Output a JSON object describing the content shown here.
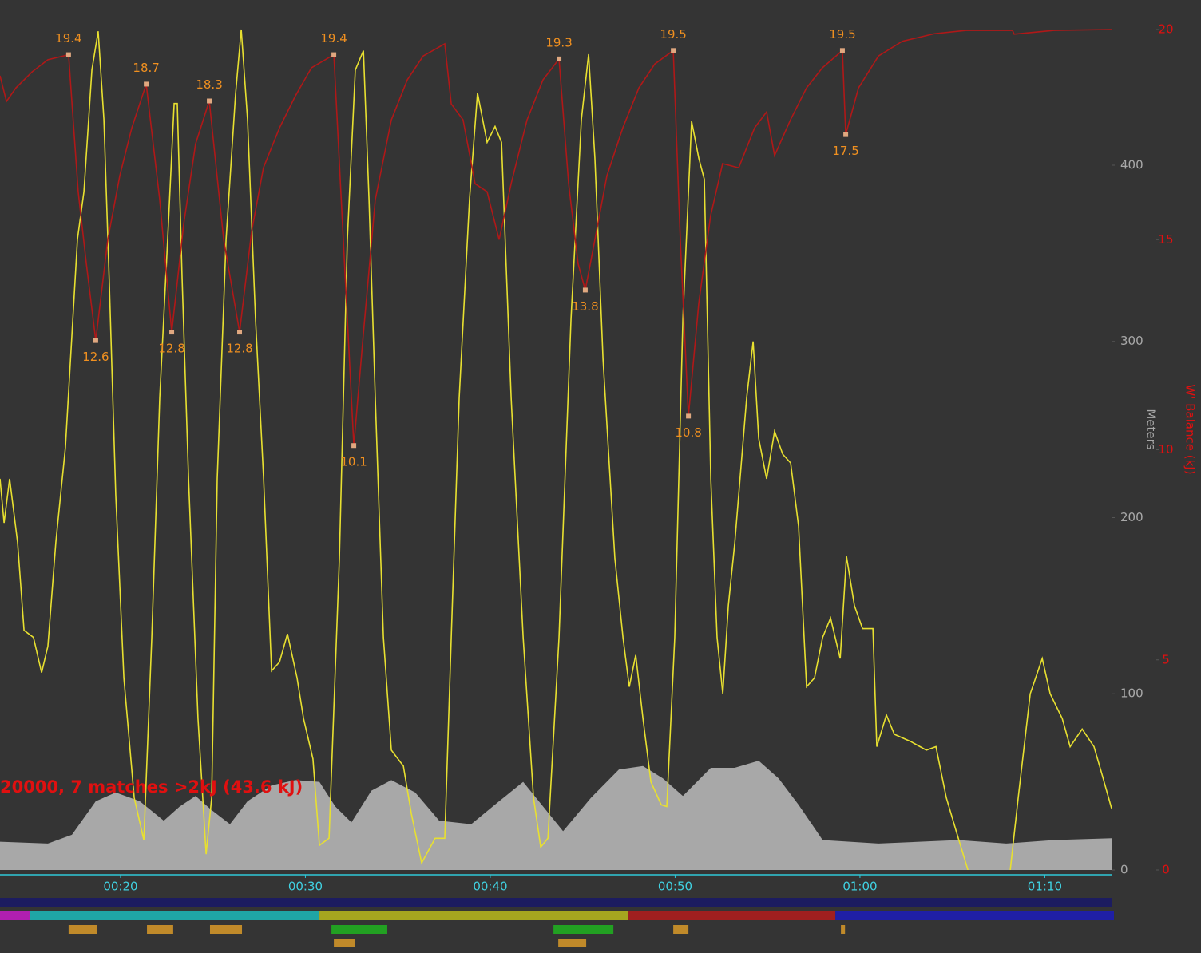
{
  "chart_data": {
    "type": "line",
    "title": "20000, 7 matches >2kJ (43.6 kJ)",
    "ylabel": "Meters",
    "y2label": "W' Balance (kJ)",
    "xlim": [
      13.48,
      73.61
    ],
    "xticks": [
      {
        "value": 20,
        "label": "00:20"
      },
      {
        "value": 30,
        "label": "00:30"
      },
      {
        "value": 40,
        "label": "00:40"
      },
      {
        "value": 50,
        "label": "00:50"
      },
      {
        "value": 60,
        "label": "01:00"
      },
      {
        "value": 70,
        "label": "01:10"
      }
    ],
    "ylim": [
      0,
      477
    ],
    "yticks": [
      0,
      100,
      200,
      300,
      400
    ],
    "y2lim": [
      0,
      20
    ],
    "y2ticks": [
      0,
      5,
      10,
      15,
      20
    ],
    "series": [
      {
        "type": "area",
        "color": "#a8a8a8",
        "x": [
          13.48,
          16.07,
          17.37,
          18.66,
          19.74,
          21.04,
          22.34,
          23.2,
          24.06,
          24.93,
          25.92,
          26.87,
          28.17,
          29.46,
          30.76,
          31.62,
          32.49,
          33.57,
          34.65,
          35.94,
          37.24,
          38.97,
          40.48,
          41.78,
          42.86,
          43.94,
          45.45,
          46.96,
          48.26,
          49.34,
          50.42,
          51.93,
          53.22,
          54.52,
          55.6,
          56.68,
          57.98,
          61.0,
          65.32,
          67.91,
          70.5,
          73.61
        ],
        "values": [
          16,
          15,
          20,
          39,
          44,
          39,
          28,
          36,
          42,
          34,
          26,
          39,
          48,
          51,
          50,
          36,
          27,
          45,
          51,
          44,
          28,
          26,
          39,
          50,
          36,
          22,
          41,
          57,
          59,
          52,
          42,
          58,
          58,
          62,
          52,
          37,
          17,
          15,
          17,
          15,
          17,
          18
        ]
      },
      {
        "type": "line",
        "color": "#e8e030",
        "x": [
          13.48,
          13.7,
          14.0,
          14.43,
          14.78,
          15.29,
          15.73,
          16.07,
          16.5,
          17.02,
          17.67,
          18.02,
          18.45,
          18.79,
          19.1,
          19.4,
          19.74,
          20.18,
          20.74,
          21.26,
          21.69,
          22.12,
          22.55,
          22.9,
          23.07,
          23.33,
          23.68,
          24.19,
          24.63,
          24.93,
          25.23,
          25.71,
          26.22,
          26.53,
          26.87,
          27.3,
          27.74,
          28.17,
          28.6,
          29.03,
          29.55,
          29.9,
          30.41,
          30.76,
          31.28,
          31.84,
          32.27,
          32.7,
          33.14,
          33.44,
          33.78,
          34.22,
          34.65,
          35.3,
          35.73,
          36.29,
          37.02,
          37.54,
          37.89,
          38.32,
          38.88,
          39.31,
          39.83,
          40.26,
          40.61,
          41.13,
          41.78,
          42.34,
          42.73,
          43.12,
          43.72,
          44.37,
          44.93,
          45.32,
          45.66,
          46.1,
          46.74,
          47.18,
          47.52,
          47.87,
          48.26,
          48.69,
          49.25,
          49.55,
          49.98,
          50.42,
          50.89,
          51.28,
          51.58,
          51.93,
          52.27,
          52.58,
          52.88,
          53.23,
          53.87,
          54.22,
          54.52,
          54.95,
          55.38,
          55.82,
          56.25,
          56.68,
          57.11,
          57.54,
          57.98,
          58.41,
          58.93,
          59.27,
          59.7,
          60.14,
          60.7,
          60.91,
          61.43,
          61.86,
          62.73,
          63.59,
          64.11,
          64.67,
          65.32,
          65.84,
          66.9,
          68.13,
          68.56,
          69.21,
          69.86,
          70.29,
          70.94,
          71.37,
          72.02,
          72.66,
          73.1,
          73.61
        ],
        "values": [
          222,
          197,
          222,
          186,
          136,
          132,
          112,
          127,
          186,
          240,
          358,
          385,
          454,
          476,
          426,
          331,
          213,
          109,
          41,
          17,
          132,
          268,
          358,
          435,
          435,
          336,
          222,
          86,
          9,
          41,
          222,
          358,
          440,
          477,
          426,
          313,
          222,
          113,
          118,
          134,
          109,
          86,
          63,
          14,
          18,
          177,
          358,
          454,
          465,
          381,
          268,
          132,
          68,
          59,
          32,
          4,
          18,
          18,
          132,
          268,
          381,
          441,
          413,
          422,
          413,
          268,
          132,
          41,
          13,
          18,
          132,
          313,
          426,
          463,
          404,
          290,
          177,
          132,
          104,
          122,
          86,
          50,
          37,
          36,
          132,
          313,
          425,
          404,
          392,
          222,
          132,
          100,
          150,
          186,
          268,
          300,
          245,
          222,
          249,
          236,
          231,
          195,
          104,
          109,
          132,
          143,
          120,
          178,
          150,
          137,
          137,
          70,
          88,
          77,
          73,
          68,
          70,
          41,
          18,
          0,
          null,
          0,
          41,
          100,
          120,
          100,
          86,
          70,
          80,
          70,
          54,
          35
        ]
      },
      {
        "type": "line",
        "color": "#b01818",
        "axis": "y2",
        "x": [
          13.48,
          13.83,
          14.34,
          15.21,
          16.07,
          17.19,
          17.71,
          18.15,
          18.66,
          19.31,
          19.96,
          20.61,
          21.39,
          22.12,
          22.77,
          23.42,
          24.06,
          24.8,
          25.58,
          26.44,
          27.09,
          27.73,
          28.6,
          29.46,
          30.33,
          31.54,
          32.05,
          32.62,
          33.13,
          33.78,
          34.65,
          35.51,
          36.37,
          37.54,
          37.89,
          38.53,
          39.18,
          39.83,
          40.48,
          41.13,
          41.99,
          42.85,
          43.72,
          44.24,
          44.75,
          45.14,
          45.66,
          46.31,
          47.17,
          48.04,
          48.9,
          49.9,
          50.28,
          50.72,
          51.28,
          51.92,
          52.57,
          53.44,
          54.3,
          54.95,
          55.38,
          56.24,
          57.11,
          57.97,
          59.05,
          59.23,
          59.92,
          61.0,
          62.29,
          64.02,
          65.75,
          68.25,
          68.34,
          70.5,
          73.61
        ],
        "values": [
          18.9,
          18.29,
          18.61,
          18.99,
          19.28,
          19.4,
          16.14,
          14.43,
          12.6,
          15.0,
          16.52,
          17.66,
          18.7,
          15.95,
          12.8,
          15.38,
          17.28,
          18.3,
          15.0,
          12.8,
          15.19,
          16.71,
          17.66,
          18.42,
          19.09,
          19.4,
          15.0,
          10.1,
          12.73,
          15.95,
          17.85,
          18.8,
          19.37,
          19.66,
          18.23,
          17.85,
          16.33,
          16.14,
          15.0,
          16.33,
          17.85,
          18.8,
          19.3,
          16.33,
          14.43,
          13.8,
          15.0,
          16.52,
          17.66,
          18.61,
          19.18,
          19.5,
          15.0,
          10.8,
          13.49,
          15.57,
          16.81,
          16.71,
          17.66,
          18.04,
          17.0,
          17.85,
          18.61,
          19.09,
          19.5,
          17.5,
          18.61,
          19.37,
          19.72,
          19.9,
          19.98,
          19.98,
          19.89,
          19.98,
          20.0
        ]
      }
    ],
    "annotations": [
      {
        "x": 17.19,
        "value": 19.4
      },
      {
        "x": 18.66,
        "value": 12.6
      },
      {
        "x": 21.39,
        "value": 18.7
      },
      {
        "x": 22.77,
        "value": 12.8
      },
      {
        "x": 24.8,
        "value": 18.3
      },
      {
        "x": 26.44,
        "value": 12.8
      },
      {
        "x": 31.54,
        "value": 19.4
      },
      {
        "x": 32.62,
        "value": 10.1
      },
      {
        "x": 43.72,
        "value": 19.3
      },
      {
        "x": 45.14,
        "value": 13.8
      },
      {
        "x": 49.9,
        "value": 19.5
      },
      {
        "x": 50.72,
        "value": 10.8
      },
      {
        "x": 59.05,
        "value": 19.5
      },
      {
        "x": 59.23,
        "value": 17.5
      }
    ],
    "bands": [
      [
        {
          "start": 13.48,
          "end": 15.12,
          "color": "#b01fb0"
        },
        {
          "start": 15.12,
          "end": 30.76,
          "color": "#1fa5a5"
        },
        {
          "start": 30.76,
          "end": 47.48,
          "color": "#a5a51f"
        },
        {
          "start": 47.48,
          "end": 58.67,
          "color": "#a01f1f"
        },
        {
          "start": 58.67,
          "end": 73.74,
          "color": "#1f1fa5"
        }
      ],
      [
        {
          "start": 17.19,
          "end": 18.71,
          "color": "#c08a2a"
        },
        {
          "start": 21.43,
          "end": 22.85,
          "color": "#c08a2a"
        },
        {
          "start": 24.84,
          "end": 26.57,
          "color": "#c08a2a"
        },
        {
          "start": 31.41,
          "end": 34.43,
          "color": "#22a022"
        },
        {
          "start": 43.42,
          "end": 46.66,
          "color": "#22a022"
        },
        {
          "start": 49.9,
          "end": 50.72,
          "color": "#c08a2a"
        },
        {
          "start": 58.97,
          "end": 59.19,
          "color": "#c08a2a"
        }
      ],
      [
        {
          "start": 31.54,
          "end": 32.7,
          "color": "#c08a2a"
        },
        {
          "start": 43.68,
          "end": 45.19,
          "color": "#c08a2a"
        }
      ]
    ]
  }
}
